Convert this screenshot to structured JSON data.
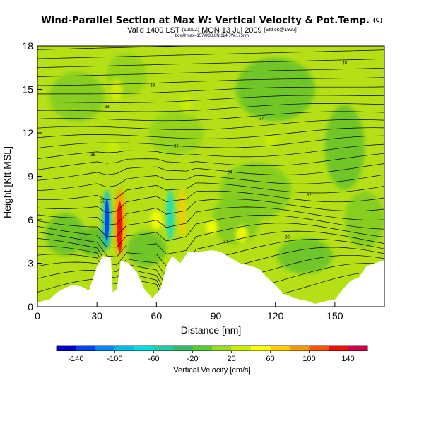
{
  "header": {
    "title": "Wind-Parallel Section at Max W: Vertical Velocity & Pot.Temp.",
    "title_mark": "(C)",
    "subtitle": "Valid 1400 LST",
    "subtitle_small": "(1200Z)",
    "subtitle_date": "MON 13 Jul 2009",
    "subtitle_tag": "[Std cs@1922]",
    "subtitle2": "box@max=157@33.8N,114.7W,175nm"
  },
  "chart_data": {
    "type": "heatmap",
    "title": "Wind-Parallel Section at Max W: Vertical Velocity & Pot.Temp.",
    "xlabel": "Distance [nm]",
    "ylabel": "Height [Kft MSL]",
    "xlim": [
      0,
      175
    ],
    "ylim": [
      0,
      18
    ],
    "xticks": [
      0,
      30,
      60,
      90,
      120,
      150
    ],
    "yticks": [
      0,
      3,
      6,
      9,
      12,
      15,
      18
    ],
    "colorbar": {
      "label": "Vertical Velocity [cm/s]",
      "min": -160,
      "max": 160,
      "step": 20,
      "tick_labels": [
        -140,
        -100,
        -60,
        -20,
        20,
        60,
        100,
        140
      ],
      "colors": [
        "#0000cc",
        "#0044ee",
        "#0088ff",
        "#00bbee",
        "#00dddd",
        "#22ccaa",
        "#33bb66",
        "#55cc33",
        "#99dd22",
        "#ccee00",
        "#ffff00",
        "#ffcc00",
        "#ff9900",
        "#ff5500",
        "#ee1100",
        "#cc0044"
      ]
    },
    "terrain_kft": [
      [
        0,
        0.3
      ],
      [
        6,
        0.5
      ],
      [
        10,
        1.0
      ],
      [
        14,
        1.3
      ],
      [
        18,
        1.5
      ],
      [
        22,
        1.4
      ],
      [
        26,
        1.1
      ],
      [
        30,
        2.8
      ],
      [
        33,
        3.5
      ],
      [
        37,
        3.4
      ],
      [
        38,
        1.0
      ],
      [
        40,
        1.2
      ],
      [
        42,
        3.2
      ],
      [
        46,
        3.0
      ],
      [
        50,
        2.4
      ],
      [
        54,
        1.2
      ],
      [
        58,
        0.6
      ],
      [
        62,
        1.2
      ],
      [
        65,
        2.8
      ],
      [
        68,
        3.5
      ],
      [
        72,
        3.0
      ],
      [
        74,
        3.4
      ],
      [
        76,
        3.8
      ],
      [
        82,
        3.8
      ],
      [
        88,
        3.9
      ],
      [
        92,
        3.8
      ],
      [
        96,
        3.5
      ],
      [
        102,
        3.0
      ],
      [
        108,
        2.8
      ],
      [
        112,
        2.6
      ],
      [
        116,
        2.0
      ],
      [
        120,
        1.5
      ],
      [
        124,
        0.9
      ],
      [
        128,
        0.7
      ],
      [
        132,
        0.5
      ],
      [
        136,
        0.4
      ],
      [
        140,
        0.2
      ],
      [
        146,
        0.4
      ],
      [
        150,
        0.5
      ],
      [
        154,
        1.2
      ],
      [
        158,
        1.8
      ],
      [
        162,
        2.0
      ],
      [
        166,
        2.8
      ],
      [
        170,
        3.0
      ],
      [
        175,
        3.2
      ]
    ],
    "theta_contour_labels": [
      {
        "text": "40",
        "x": 155,
        "y": 16.8
      },
      {
        "text": "39",
        "x": 58,
        "y": 15.3
      },
      {
        "text": "38",
        "x": 35,
        "y": 13.8
      },
      {
        "text": "37",
        "x": 113,
        "y": 13.0
      },
      {
        "text": "36",
        "x": 70,
        "y": 11.1
      },
      {
        "text": "35",
        "x": 28,
        "y": 10.5
      },
      {
        "text": "34",
        "x": 97,
        "y": 9.3
      },
      {
        "text": "33",
        "x": 33,
        "y": 7.3
      },
      {
        "text": "32",
        "x": 137,
        "y": 7.7
      },
      {
        "text": "31",
        "x": 95,
        "y": 4.5
      },
      {
        "text": "30",
        "x": 126,
        "y": 4.8
      }
    ]
  }
}
